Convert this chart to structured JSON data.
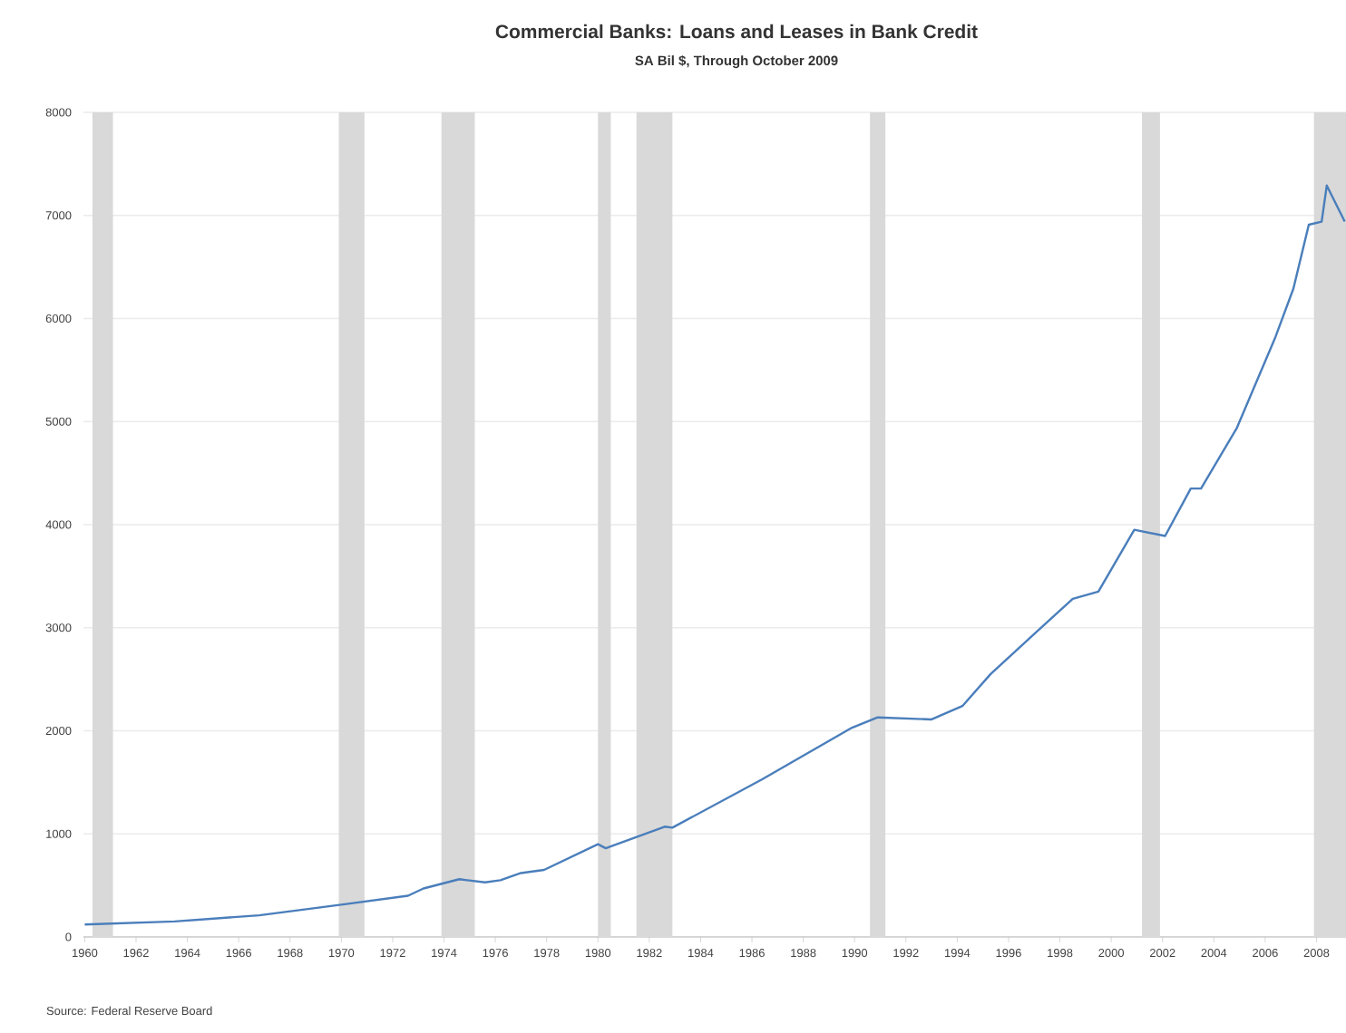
{
  "chart_data": {
    "type": "line",
    "title": "Commercial Banks: Loans and Leases in Bank Credit",
    "subtitle": "SA Bil $, Through October 2009",
    "annotations": [
      "Source: Federal Reserve Board"
    ],
    "xlim": [
      1959.95,
      2009.15
    ],
    "xticks": [
      1960,
      1962,
      1964,
      1966,
      1968,
      1970,
      1972,
      1974,
      1976,
      1978,
      1980,
      1982,
      1984,
      1986,
      1988,
      1990,
      1992,
      1994,
      1996,
      1998,
      2000,
      2002,
      2004,
      2006,
      2008
    ],
    "ylim": [
      0,
      8000
    ],
    "yticks": [
      0,
      1000,
      2000,
      3000,
      4000,
      5000,
      6000,
      7000,
      8000
    ],
    "grid": "y",
    "bands": [
      {
        "axis": "x",
        "from": 1960.3,
        "to": 1961.1,
        "color": "#d9d9d9"
      },
      {
        "axis": "x",
        "from": 1969.9,
        "to": 1970.9,
        "color": "#d9d9d9"
      },
      {
        "axis": "x",
        "from": 1973.9,
        "to": 1975.2,
        "color": "#d9d9d9"
      },
      {
        "axis": "x",
        "from": 1980.0,
        "to": 1980.5,
        "color": "#d9d9d9"
      },
      {
        "axis": "x",
        "from": 1981.5,
        "to": 1982.9,
        "color": "#d9d9d9"
      },
      {
        "axis": "x",
        "from": 1990.6,
        "to": 1991.2,
        "color": "#d9d9d9"
      },
      {
        "axis": "x",
        "from": 2001.2,
        "to": 2001.9,
        "color": "#d9d9d9"
      },
      {
        "axis": "x",
        "from": 2007.9,
        "to": 2009.15,
        "color": "#d9d9d9"
      }
    ],
    "series": [
      {
        "color": "#4a7ebb",
        "x": [
          1960,
          1963.5,
          1966.8,
          1970.2,
          1972.6,
          1973.2,
          1974.6,
          1974.9,
          1975.6,
          1976.2,
          1977.0,
          1977.9,
          1980.0,
          1980.3,
          1982.6,
          1982.9,
          1986.4,
          1989.9,
          1990.9,
          1993.0,
          1994.2,
          1995.3,
          1997.0,
          1998.5,
          1999.5,
          2000.9,
          2002.1,
          2003.1,
          2003.5,
          2004.9,
          2006.4,
          2007.1,
          2007.7,
          2008.2,
          2008.4,
          2009.1
        ],
        "values": [
          120,
          150,
          210,
          320,
          400,
          470,
          560,
          550,
          530,
          550,
          620,
          650,
          900,
          860,
          1070,
          1060,
          1530,
          2030,
          2130,
          2110,
          2240,
          2550,
          2940,
          3280,
          3350,
          3950,
          3890,
          4350,
          4350,
          4940,
          5820,
          6290,
          6910,
          6940,
          7290,
          6940
        ]
      }
    ]
  }
}
